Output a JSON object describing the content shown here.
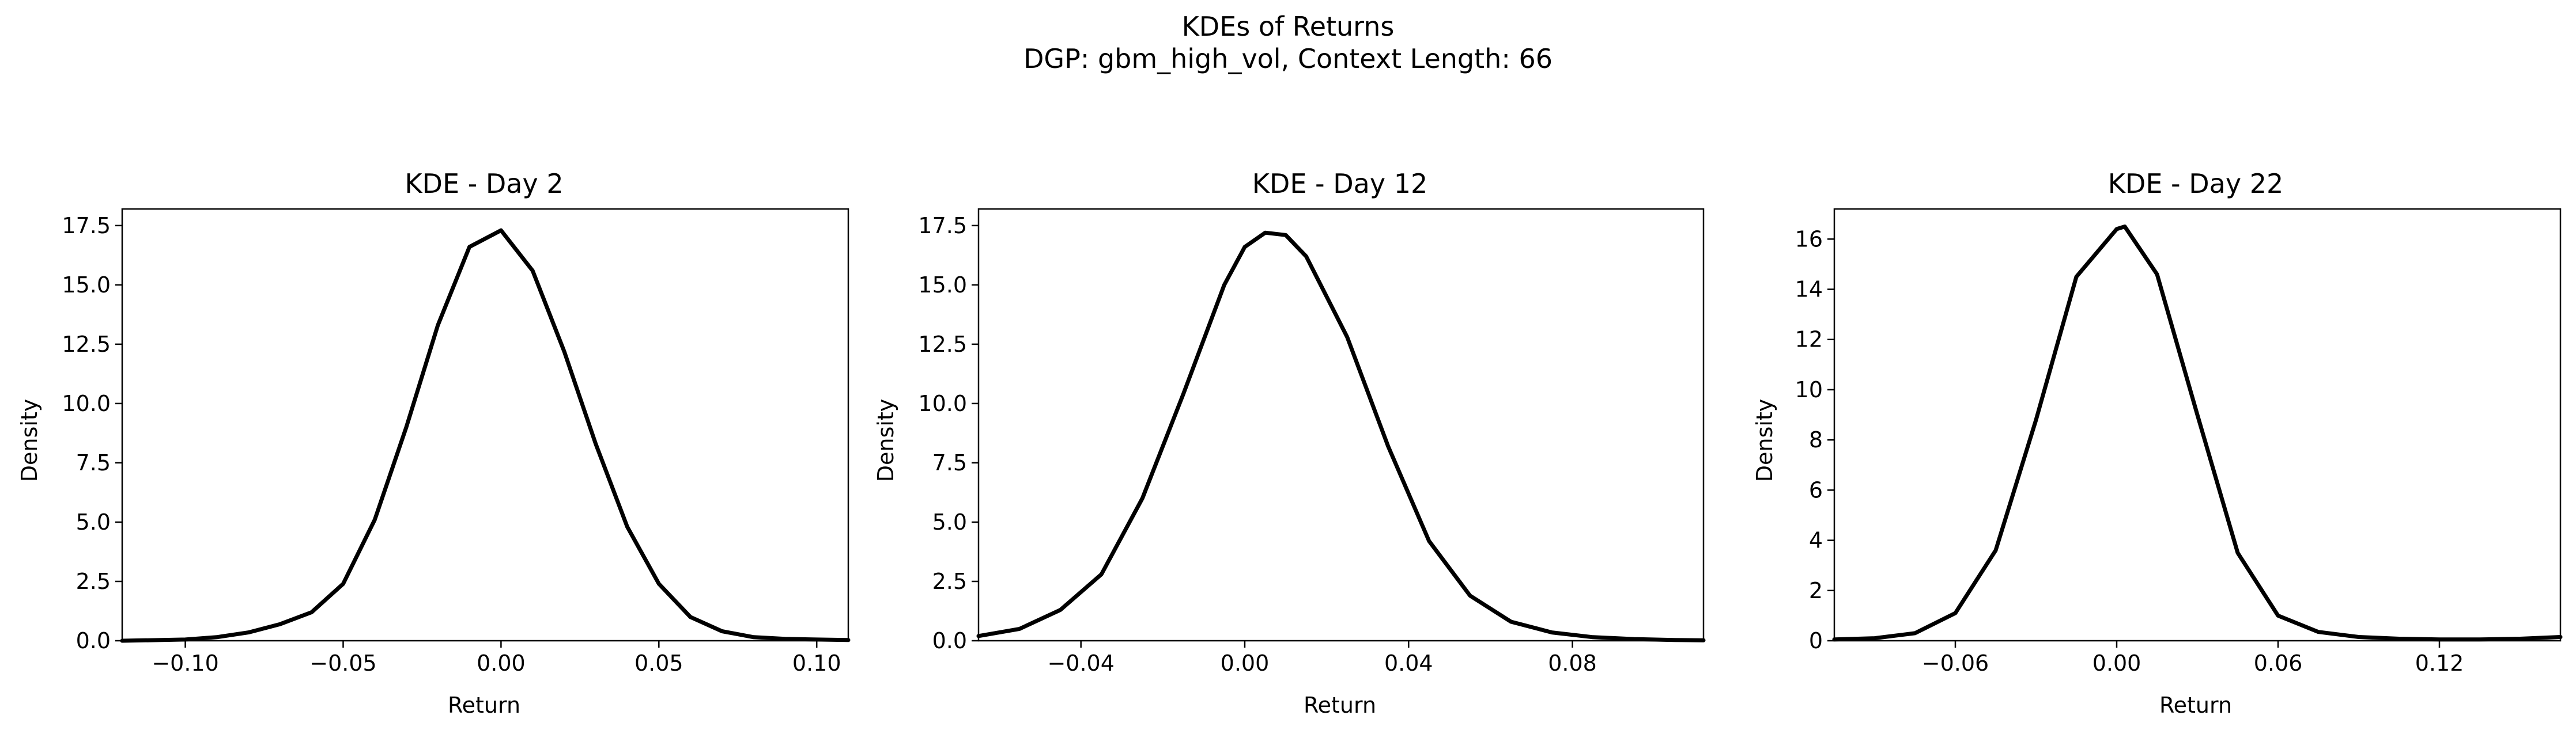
{
  "suptitle": {
    "line1": "KDEs of Returns",
    "line2": "DGP: gbm_high_vol, Context Length: 66"
  },
  "chart_data": [
    {
      "type": "line",
      "title": "KDE - Day 2",
      "xlabel": "Return",
      "ylabel": "Density",
      "xlim": [
        -0.12,
        0.11
      ],
      "ylim": [
        0,
        18.2
      ],
      "xticks": [
        -0.1,
        -0.05,
        0.0,
        0.05,
        0.1
      ],
      "xticklabels": [
        "−0.10",
        "−0.05",
        "0.00",
        "0.05",
        "0.10"
      ],
      "yticks": [
        0,
        2.5,
        5,
        7.5,
        10,
        12.5,
        15,
        17.5
      ],
      "yticklabels": [
        "0.0",
        "2.5",
        "5.0",
        "7.5",
        "10.0",
        "12.5",
        "15.0",
        "17.5"
      ],
      "grid": false,
      "series": [
        {
          "color": "#000000",
          "x": [
            -0.12,
            -0.1,
            -0.09,
            -0.08,
            -0.07,
            -0.06,
            -0.05,
            -0.04,
            -0.03,
            -0.02,
            -0.01,
            0.0,
            0.01,
            0.02,
            0.03,
            0.04,
            0.05,
            0.06,
            0.07,
            0.08,
            0.09,
            0.1,
            0.11
          ],
          "y": [
            0.0,
            0.05,
            0.15,
            0.35,
            0.7,
            1.2,
            2.4,
            5.1,
            9.0,
            13.3,
            16.6,
            17.3,
            15.6,
            12.2,
            8.3,
            4.8,
            2.4,
            1.0,
            0.4,
            0.15,
            0.08,
            0.05,
            0.03
          ]
        }
      ]
    },
    {
      "type": "line",
      "title": "KDE - Day 12",
      "xlabel": "Return",
      "ylabel": "Density",
      "xlim": [
        -0.065,
        0.112
      ],
      "ylim": [
        0,
        18.2
      ],
      "xticks": [
        -0.04,
        0.0,
        0.04,
        0.08
      ],
      "xticklabels": [
        "−0.04",
        "0.00",
        "0.04",
        "0.08"
      ],
      "yticks": [
        0,
        2.5,
        5,
        7.5,
        10,
        12.5,
        15,
        17.5
      ],
      "yticklabels": [
        "0.0",
        "2.5",
        "5.0",
        "7.5",
        "10.0",
        "12.5",
        "15.0",
        "17.5"
      ],
      "grid": false,
      "series": [
        {
          "color": "#000000",
          "x": [
            -0.065,
            -0.055,
            -0.045,
            -0.035,
            -0.025,
            -0.015,
            -0.005,
            0.0,
            0.005,
            0.01,
            0.015,
            0.025,
            0.035,
            0.045,
            0.055,
            0.065,
            0.075,
            0.085,
            0.095,
            0.105,
            0.112
          ],
          "y": [
            0.2,
            0.5,
            1.3,
            2.8,
            6.0,
            10.4,
            15.0,
            16.6,
            17.2,
            17.1,
            16.2,
            12.8,
            8.2,
            4.2,
            1.9,
            0.8,
            0.35,
            0.15,
            0.07,
            0.03,
            0.02
          ]
        }
      ]
    },
    {
      "type": "line",
      "title": "KDE - Day 22",
      "xlabel": "Return",
      "ylabel": "Density",
      "xlim": [
        -0.105,
        0.165
      ],
      "ylim": [
        0,
        17.2
      ],
      "xticks": [
        -0.06,
        0.0,
        0.06,
        0.12
      ],
      "xticklabels": [
        "−0.06",
        "0.00",
        "0.06",
        "0.12"
      ],
      "yticks": [
        0,
        2,
        4,
        6,
        8,
        10,
        12,
        14,
        16
      ],
      "yticklabels": [
        "0",
        "2",
        "4",
        "6",
        "8",
        "10",
        "12",
        "14",
        "16"
      ],
      "grid": false,
      "series": [
        {
          "color": "#000000",
          "x": [
            -0.105,
            -0.09,
            -0.075,
            -0.06,
            -0.045,
            -0.03,
            -0.015,
            0.0,
            0.003,
            0.015,
            0.03,
            0.045,
            0.06,
            0.075,
            0.09,
            0.105,
            0.12,
            0.135,
            0.15,
            0.165
          ],
          "y": [
            0.05,
            0.1,
            0.3,
            1.1,
            3.6,
            8.8,
            14.5,
            16.4,
            16.5,
            14.6,
            9.0,
            3.5,
            1.0,
            0.35,
            0.15,
            0.08,
            0.05,
            0.05,
            0.08,
            0.15
          ]
        }
      ]
    }
  ]
}
